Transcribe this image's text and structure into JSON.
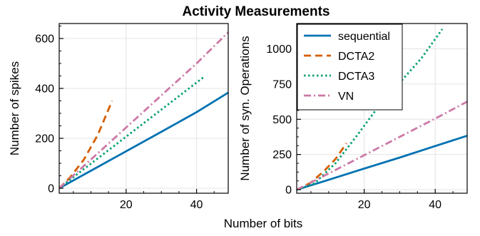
{
  "figure": {
    "title": "Activity Measurements",
    "xlabel": "Number of bits"
  },
  "colors": {
    "sequential": "#0072B2",
    "DCTA2": "#D55E00",
    "DCTA3": "#009E73",
    "VN": "#CC79A7",
    "grid": "#e4e4e4"
  },
  "chart_data": [
    {
      "type": "line",
      "ylabel": "Number of spikes",
      "xlim": [
        1,
        49
      ],
      "ylim": [
        -20,
        660
      ],
      "xticks": [
        20,
        40
      ],
      "yticks": [
        0,
        200,
        400,
        600
      ],
      "grid": true,
      "legend": null,
      "series": [
        {
          "name": "sequential",
          "x": [
            1,
            10,
            20,
            30,
            40,
            49
          ],
          "y": [
            0,
            70,
            148,
            226,
            305,
            383
          ]
        },
        {
          "name": "DCTA2",
          "x": [
            1,
            4,
            8,
            12,
            16
          ],
          "y": [
            0,
            42,
            115,
            215,
            350
          ]
        },
        {
          "name": "DCTA3",
          "x": [
            1,
            6,
            12,
            18,
            24,
            30,
            36,
            42
          ],
          "y": [
            0,
            55,
            120,
            185,
            250,
            315,
            380,
            445
          ]
        },
        {
          "name": "VN",
          "x": [
            1,
            10,
            20,
            30,
            40,
            49
          ],
          "y": [
            0,
            115,
            243,
            372,
            500,
            625
          ]
        }
      ]
    },
    {
      "type": "line",
      "ylabel": "Number of syn. Operations",
      "xlim": [
        1,
        49
      ],
      "ylim": [
        -25,
        1180
      ],
      "xticks": [
        20,
        40
      ],
      "yticks": [
        0,
        250,
        500,
        750,
        1000
      ],
      "grid": true,
      "legend": "top-left",
      "series": [
        {
          "name": "sequential",
          "x": [
            1,
            10,
            20,
            30,
            40,
            49
          ],
          "y": [
            0,
            70,
            150,
            228,
            310,
            383
          ]
        },
        {
          "name": "DCTA2",
          "x": [
            1,
            5,
            9,
            12,
            15
          ],
          "y": [
            0,
            50,
            140,
            220,
            330
          ]
        },
        {
          "name": "DCTA3",
          "x": [
            1,
            6,
            12,
            18,
            24,
            30,
            36,
            42
          ],
          "y": [
            0,
            45,
            190,
            385,
            590,
            760,
            930,
            1140
          ]
        },
        {
          "name": "VN",
          "x": [
            1,
            10,
            20,
            30,
            40,
            49
          ],
          "y": [
            0,
            115,
            245,
            375,
            505,
            625
          ]
        }
      ]
    }
  ]
}
